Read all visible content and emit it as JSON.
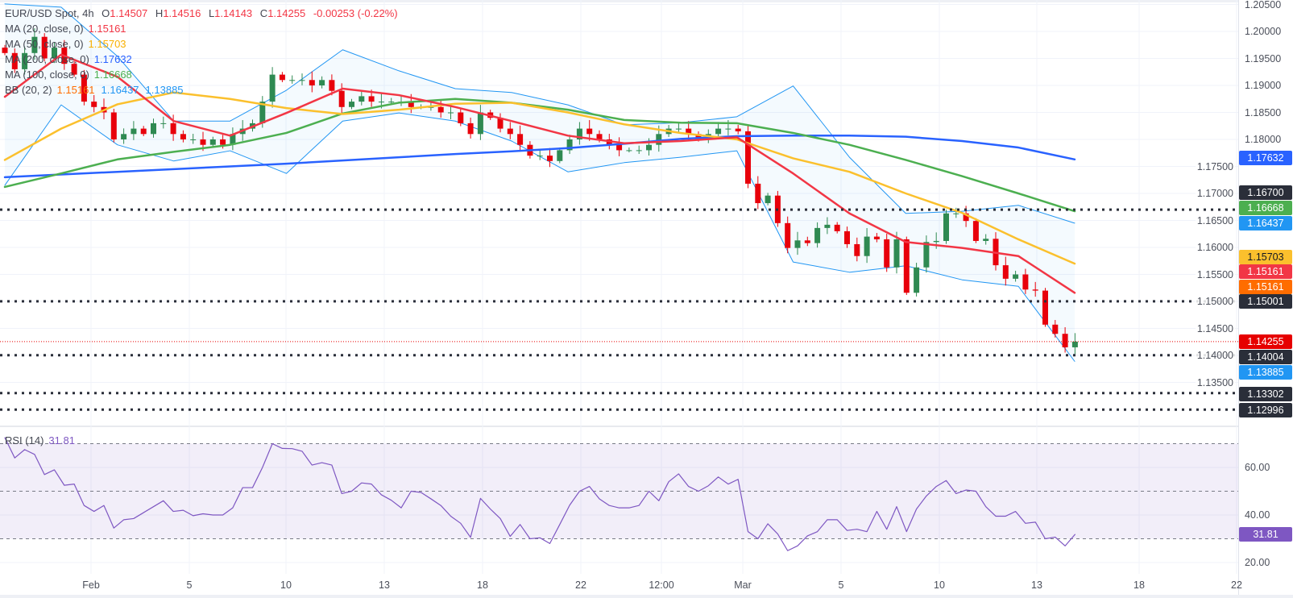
{
  "header": {
    "symbol": "EUR/USD Spot, 4h",
    "open_label": "O",
    "open": "1.14507",
    "high_label": "H",
    "high": "1.14516",
    "low_label": "L",
    "low": "1.14143",
    "close_label": "C",
    "close": "1.14255",
    "change": "-0.00253 (-0.22%)"
  },
  "indicators": [
    {
      "label": "MA (20, close, 0)",
      "values": [
        "1.15161"
      ],
      "colors": [
        "#f23645"
      ]
    },
    {
      "label": "MA (50, close, 0)",
      "values": [
        "1.15703"
      ],
      "colors": [
        "#fbc02d"
      ]
    },
    {
      "label": "MA (200, close, 0)",
      "values": [
        "1.17632"
      ],
      "colors": [
        "#2962ff"
      ]
    },
    {
      "label": "MA (100, close, 0)",
      "values": [
        "1.16668"
      ],
      "colors": [
        "#4caf50"
      ]
    },
    {
      "label": "BB (20, 2)",
      "values": [
        "1.15161",
        "1.16437",
        "1.13885"
      ],
      "colors": [
        "#ff6d00",
        "#2196f3",
        "#2196f3"
      ]
    }
  ],
  "rsi_legend": {
    "label": "RSI (14)",
    "value": "31.81"
  },
  "chart_data": {
    "type": "candlestick",
    "symbol": "EUR/USD Spot",
    "interval": "4h",
    "colors": {
      "up": "#2f8a52",
      "down": "#e8000b",
      "ma20": "#f23645",
      "ma50": "#fbc02d",
      "ma100": "#4caf50",
      "ma200": "#2962ff",
      "bb": "#2196f3",
      "rsi": "#7e57c2",
      "last_price": "#e60000",
      "level": "#2a2e39"
    },
    "x_tick_labels": [
      "Feb",
      "5",
      "10",
      "13",
      "18",
      "22",
      "12:00",
      "Mar",
      "5",
      "10",
      "13",
      "18",
      "22"
    ],
    "y_tick_labels": [
      "1.20500",
      "1.20000",
      "1.19500",
      "1.19000",
      "1.18500",
      "1.18000",
      "1.17500",
      "1.17000",
      "1.16500",
      "1.16000",
      "1.15500",
      "1.15000",
      "1.14500",
      "1.14000",
      "1.13500"
    ],
    "ylim": [
      1.1265,
      1.2058
    ],
    "grid": true,
    "closes": [
      1.196,
      1.193,
      1.196,
      1.199,
      1.195,
      1.197,
      1.194,
      1.192,
      1.187,
      1.186,
      1.185,
      1.18,
      1.181,
      1.182,
      1.181,
      1.183,
      1.183,
      1.181,
      1.18,
      1.18,
      1.179,
      1.18,
      1.179,
      1.181,
      1.182,
      1.183,
      1.187,
      1.192,
      1.191,
      1.191,
      1.191,
      1.19,
      1.191,
      1.189,
      1.186,
      1.187,
      1.188,
      1.187,
      1.187,
      1.187,
      1.187,
      1.186,
      1.186,
      1.186,
      1.185,
      1.185,
      1.183,
      1.181,
      1.185,
      1.184,
      1.182,
      1.181,
      1.179,
      1.177,
      1.177,
      1.176,
      1.178,
      1.18,
      1.182,
      1.181,
      1.18,
      1.179,
      1.178,
      1.178,
      1.178,
      1.179,
      1.181,
      1.182,
      1.182,
      1.181,
      1.18,
      1.181,
      1.182,
      1.182,
      1.1815,
      1.1718,
      1.1682,
      1.1696,
      1.1645,
      1.1599,
      1.1613,
      1.1608,
      1.1636,
      1.1642,
      1.163,
      1.1606,
      1.1584,
      1.162,
      1.1615,
      1.1563,
      1.1615,
      1.1516,
      1.1563,
      1.161,
      1.1612,
      1.1663,
      1.1663,
      1.1649,
      1.1612,
      1.1616,
      1.1567,
      1.1542,
      1.155,
      1.1522,
      1.152,
      1.1457,
      1.144,
      1.1415,
      1.14255
    ],
    "ma20": [
      1.1879,
      1.1957,
      1.1916,
      1.1834,
      1.1807,
      1.1849,
      1.1894,
      1.1882,
      1.186,
      1.1834,
      1.1807,
      1.1793,
      1.1797,
      1.1804,
      1.1737,
      1.1663,
      1.161,
      1.1599,
      1.1584,
      1.1516
    ],
    "ma50": [
      1.1762,
      1.182,
      1.1865,
      1.1887,
      1.1875,
      1.1858,
      1.1847,
      1.1855,
      1.1866,
      1.1868,
      1.185,
      1.1828,
      1.1812,
      1.18,
      1.1765,
      1.174,
      1.17,
      1.1664,
      1.1615,
      1.157
    ],
    "ma100": [
      1.1712,
      1.1737,
      1.1763,
      1.1777,
      1.179,
      1.1812,
      1.1848,
      1.1868,
      1.1875,
      1.1868,
      1.1855,
      1.1836,
      1.1831,
      1.183,
      1.1812,
      1.179,
      1.1762,
      1.1732,
      1.17,
      1.1667
    ],
    "ma200": [
      1.173,
      1.1735,
      1.174,
      1.1745,
      1.175,
      1.1755,
      1.1761,
      1.1767,
      1.1773,
      1.1778,
      1.1784,
      1.1792,
      1.1801,
      1.1806,
      1.1807,
      1.1807,
      1.1805,
      1.1797,
      1.1785,
      1.1763
    ],
    "bb_upper": [
      1.2051,
      1.2045,
      1.1954,
      1.1834,
      1.1834,
      1.1891,
      1.1966,
      1.1927,
      1.1894,
      1.1887,
      1.1864,
      1.1827,
      1.1831,
      1.1842,
      1.1899,
      1.1767,
      1.1663,
      1.1667,
      1.1678,
      1.1645
    ],
    "bb_lower": [
      1.1715,
      1.1864,
      1.179,
      1.176,
      1.1779,
      1.1737,
      1.1834,
      1.1849,
      1.1834,
      1.1797,
      1.174,
      1.1757,
      1.1767,
      1.1779,
      1.1573,
      1.1554,
      1.1566,
      1.154,
      1.1528,
      1.1389
    ],
    "levels": [
      1.167,
      1.15001,
      1.14004,
      1.13302,
      1.12996
    ],
    "last_price": 1.14255,
    "price_badges": [
      {
        "text": "1.17632",
        "bg": "#2962ff",
        "fg": "#ffffff"
      },
      {
        "text": "1.16700",
        "bg": "#2a2e39",
        "fg": "#ffffff"
      },
      {
        "text": "1.16668",
        "bg": "#4caf50",
        "fg": "#ffffff"
      },
      {
        "text": "1.16437",
        "bg": "#2196f3",
        "fg": "#ffffff"
      },
      {
        "text": "1.15703",
        "bg": "#fbc02d",
        "fg": "#131722"
      },
      {
        "text": "1.15161",
        "bg": "#f23645",
        "fg": "#ffffff"
      },
      {
        "text": "1.15161",
        "bg": "#ff6d00",
        "fg": "#ffffff"
      },
      {
        "text": "1.15001",
        "bg": "#2a2e39",
        "fg": "#ffffff"
      },
      {
        "text": "1.14255",
        "bg": "#e60000",
        "fg": "#ffffff"
      },
      {
        "text": "1.14004",
        "bg": "#2a2e39",
        "fg": "#ffffff"
      },
      {
        "text": "1.13885",
        "bg": "#2196f3",
        "fg": "#ffffff"
      },
      {
        "text": "1.13302",
        "bg": "#2a2e39",
        "fg": "#ffffff"
      },
      {
        "text": "1.12996",
        "bg": "#2a2e39",
        "fg": "#ffffff"
      }
    ],
    "rsi": {
      "title": "RSI (14)",
      "period": 14,
      "ylim": [
        14,
        80
      ],
      "levels": [
        70,
        50,
        30
      ],
      "y_tick_labels": [
        "60.00",
        "40.00",
        "20.00"
      ],
      "badge": {
        "text": "31.81",
        "bg": "#7e57c2"
      },
      "values": [
        72.5,
        64,
        67.5,
        65.5,
        57,
        59,
        52.5,
        53,
        44,
        41.5,
        44,
        34.5,
        38,
        38.5,
        41,
        43.5,
        46,
        41.5,
        42,
        39.7,
        40.5,
        40,
        40,
        43,
        51.5,
        51.5,
        60,
        70,
        68,
        67.9,
        66.8,
        61,
        62,
        61,
        49,
        50,
        53.5,
        53,
        48.5,
        46.2,
        43,
        50,
        49.5,
        46.8,
        44,
        39.5,
        36.5,
        30.6,
        47,
        42.5,
        38.5,
        31,
        36,
        30,
        30.4,
        28,
        36,
        44.1,
        50,
        52,
        46.8,
        44,
        43,
        43,
        44,
        50,
        46,
        54,
        57.3,
        52,
        50,
        52.3,
        56,
        53,
        55,
        33,
        30,
        36.3,
        32,
        25,
        27,
        31.2,
        33,
        38,
        38,
        33.5,
        34,
        33,
        41.5,
        34,
        43.5,
        33,
        42.5,
        48,
        52,
        54.5,
        49,
        50.5,
        50,
        43.5,
        39.5,
        39.5,
        41.5,
        36.5,
        37,
        30,
        30.7,
        27,
        31.81
      ]
    }
  }
}
